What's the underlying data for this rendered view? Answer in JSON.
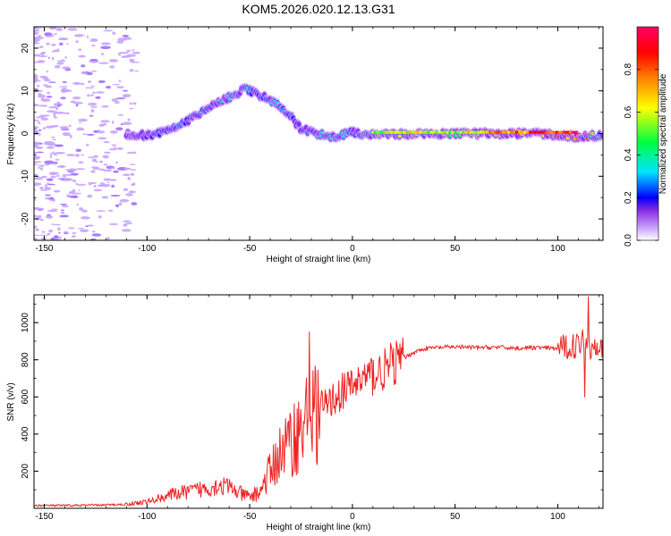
{
  "title": "KOM5.2026.020.12.13.G31",
  "chart_data": [
    {
      "type": "heatmap",
      "name": "spectrogram",
      "xlabel": "Height of straight line (km)",
      "ylabel": "Frequency (Hz)",
      "xlim": [
        -155,
        122
      ],
      "ylim": [
        -25,
        25
      ],
      "xticks": [
        -150,
        -100,
        -50,
        0,
        50,
        100
      ],
      "yticks": [
        -20,
        -10,
        0,
        10,
        20
      ],
      "xtick_labels": [
        "-150",
        "-100",
        "-50",
        "0",
        "50",
        "100"
      ],
      "ytick_labels": [
        "-20",
        "-10",
        "0",
        "10",
        "20"
      ],
      "colorbar": {
        "label": "Normalized spectral amplitude",
        "range": [
          0,
          1
        ],
        "ticks": [
          "0.0",
          "0.2",
          "0.4",
          "0.6",
          "0.8"
        ],
        "tick_values": [
          0.0,
          0.2,
          0.4,
          0.6,
          0.8
        ],
        "colors": [
          "#ffffff",
          "#c8a0ff",
          "#6a00ff",
          "#0000ff",
          "#00e5ff",
          "#00ff40",
          "#ffff00",
          "#ff8000",
          "#ff0000",
          "#ff0060"
        ]
      },
      "ridge": {
        "description_points_x_km": [
          -110,
          -100,
          -90,
          -80,
          -70,
          -60,
          -52,
          -45,
          -40,
          -35,
          -30,
          -25,
          -20,
          -10,
          0,
          10,
          30,
          50,
          70,
          90,
          110,
          122
        ],
        "freq_hz": [
          0,
          -0.5,
          0.5,
          3,
          6,
          8.5,
          10.5,
          9,
          8,
          6,
          4,
          1,
          0.5,
          -1,
          0.3,
          -0.3,
          0,
          0,
          0,
          0,
          -0.8,
          -0.3
        ],
        "amplitude": [
          0.05,
          0.18,
          0.22,
          0.28,
          0.3,
          0.32,
          0.3,
          0.28,
          0.3,
          0.3,
          0.25,
          0.2,
          0.2,
          0.4,
          0.3,
          0.5,
          0.6,
          0.55,
          0.7,
          0.8,
          0.9,
          0.35
        ]
      }
    },
    {
      "type": "line",
      "name": "snr",
      "xlabel": "Height of straight line (km)",
      "ylabel": "SNR (v/v)",
      "xlim": [
        -155,
        122
      ],
      "ylim": [
        0,
        1150
      ],
      "xticks": [
        -150,
        -100,
        -50,
        0,
        50,
        100
      ],
      "yticks": [
        200,
        400,
        600,
        800,
        1000
      ],
      "xtick_labels": [
        "-150",
        "-100",
        "-50",
        "0",
        "50",
        "100"
      ],
      "ytick_labels": [
        "200",
        "400",
        "600",
        "800",
        "1000"
      ],
      "series": [
        {
          "name": "SNR",
          "color": "#ee2222",
          "x": [
            -155,
            -140,
            -120,
            -110,
            -100,
            -95,
            -90,
            -85,
            -80,
            -75,
            -70,
            -65,
            -60,
            -55,
            -50,
            -45,
            -40,
            -35,
            -30,
            -25,
            -22,
            -20,
            -15,
            -10,
            -5,
            0,
            5,
            10,
            15,
            20,
            25,
            30,
            35,
            40,
            50,
            60,
            70,
            80,
            90,
            100,
            105,
            110,
            113,
            116,
            119,
            122
          ],
          "y": [
            15,
            15,
            18,
            22,
            35,
            50,
            70,
            80,
            90,
            100,
            110,
            125,
            115,
            80,
            60,
            90,
            200,
            300,
            360,
            420,
            480,
            500,
            540,
            580,
            630,
            660,
            700,
            720,
            740,
            780,
            810,
            840,
            860,
            865,
            870,
            865,
            868,
            862,
            866,
            860,
            870,
            880,
            920,
            860,
            900,
            865
          ]
        }
      ],
      "spikes": [
        {
          "x": -21,
          "y": 950
        },
        {
          "x": 115,
          "y": 1140
        },
        {
          "x": 113,
          "y": 600
        }
      ]
    }
  ]
}
